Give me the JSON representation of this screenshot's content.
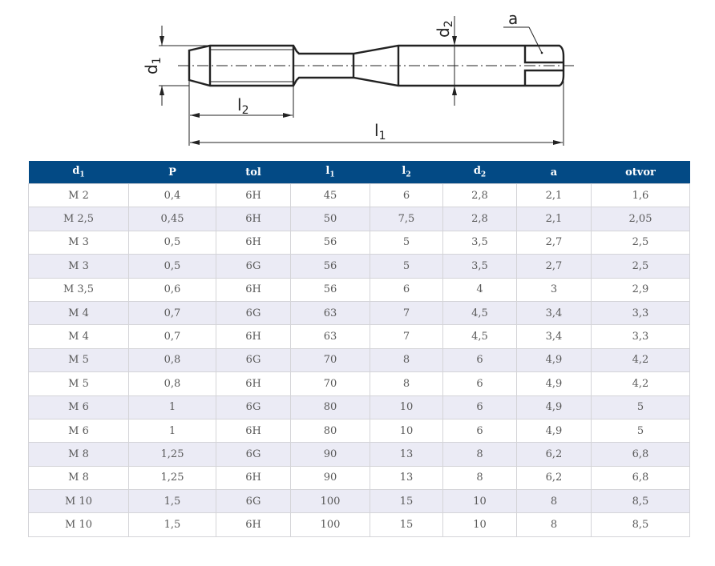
{
  "drawing": {
    "labels": {
      "d1": "d",
      "d1_sub": "1",
      "d2": "d",
      "d2_sub": "2",
      "a": "a",
      "l1": "l",
      "l1_sub": "1",
      "l2": "l",
      "l2_sub": "2"
    }
  },
  "table": {
    "header_color": "#034a85",
    "columns": [
      {
        "label": "d",
        "sub": "1"
      },
      {
        "label": "P",
        "sub": ""
      },
      {
        "label": "tol",
        "sub": ""
      },
      {
        "label": "l",
        "sub": "1"
      },
      {
        "label": "l",
        "sub": "2"
      },
      {
        "label": "d",
        "sub": "2"
      },
      {
        "label": "a",
        "sub": ""
      },
      {
        "label": "otvor",
        "sub": ""
      }
    ],
    "rows": [
      [
        "M 2",
        "0,4",
        "6H",
        "45",
        "6",
        "2,8",
        "2,1",
        "1,6"
      ],
      [
        "M 2,5",
        "0,45",
        "6H",
        "50",
        "7,5",
        "2,8",
        "2,1",
        "2,05"
      ],
      [
        "M 3",
        "0,5",
        "6H",
        "56",
        "5",
        "3,5",
        "2,7",
        "2,5"
      ],
      [
        "M 3",
        "0,5",
        "6G",
        "56",
        "5",
        "3,5",
        "2,7",
        "2,5"
      ],
      [
        "M 3,5",
        "0,6",
        "6H",
        "56",
        "6",
        "4",
        "3",
        "2,9"
      ],
      [
        "M 4",
        "0,7",
        "6G",
        "63",
        "7",
        "4,5",
        "3,4",
        "3,3"
      ],
      [
        "M 4",
        "0,7",
        "6H",
        "63",
        "7",
        "4,5",
        "3,4",
        "3,3"
      ],
      [
        "M 5",
        "0,8",
        "6G",
        "70",
        "8",
        "6",
        "4,9",
        "4,2"
      ],
      [
        "M 5",
        "0,8",
        "6H",
        "70",
        "8",
        "6",
        "4,9",
        "4,2"
      ],
      [
        "M 6",
        "1",
        "6G",
        "80",
        "10",
        "6",
        "4,9",
        "5"
      ],
      [
        "M 6",
        "1",
        "6H",
        "80",
        "10",
        "6",
        "4,9",
        "5"
      ],
      [
        "M 8",
        "1,25",
        "6G",
        "90",
        "13",
        "8",
        "6,2",
        "6,8"
      ],
      [
        "M 8",
        "1,25",
        "6H",
        "90",
        "13",
        "8",
        "6,2",
        "6,8"
      ],
      [
        "M 10",
        "1,5",
        "6G",
        "100",
        "15",
        "10",
        "8",
        "8,5"
      ],
      [
        "M 10",
        "1,5",
        "6H",
        "100",
        "15",
        "10",
        "8",
        "8,5"
      ]
    ]
  }
}
